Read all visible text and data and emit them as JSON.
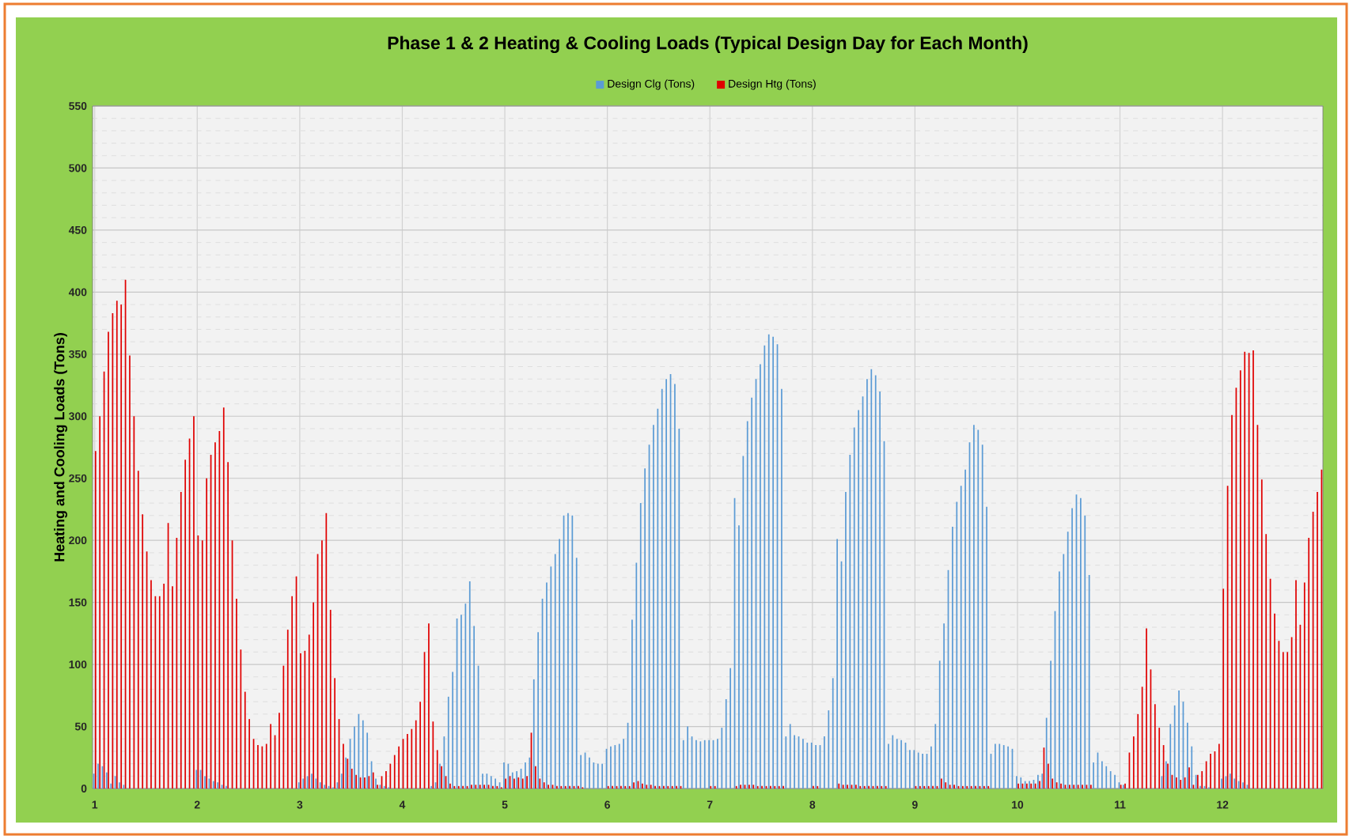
{
  "chart_data": {
    "type": "bar",
    "title": "Phase 1 & 2 Heating & Cooling Loads (Typical Design Day for Each Month)",
    "ylabel": "Heating and Cooling Loads (Tons)",
    "categories": [
      "1",
      null,
      null,
      null,
      null,
      null,
      null,
      null,
      null,
      null,
      null,
      null,
      null,
      null,
      null,
      null,
      null,
      null,
      null,
      null,
      null,
      null,
      null,
      null,
      "2",
      null,
      null,
      null,
      null,
      null,
      null,
      null,
      null,
      null,
      null,
      null,
      null,
      null,
      null,
      null,
      null,
      null,
      null,
      null,
      null,
      null,
      null,
      null,
      "3",
      null,
      null,
      null,
      null,
      null,
      null,
      null,
      null,
      null,
      null,
      null,
      null,
      null,
      null,
      null,
      null,
      null,
      null,
      null,
      null,
      null,
      null,
      null,
      "4",
      null,
      null,
      null,
      null,
      null,
      null,
      null,
      null,
      null,
      null,
      null,
      null,
      null,
      null,
      null,
      null,
      null,
      null,
      null,
      null,
      null,
      null,
      null,
      "5",
      null,
      null,
      null,
      null,
      null,
      null,
      null,
      null,
      null,
      null,
      null,
      null,
      null,
      null,
      null,
      null,
      null,
      null,
      null,
      null,
      null,
      null,
      null,
      "6",
      null,
      null,
      null,
      null,
      null,
      null,
      null,
      null,
      null,
      null,
      null,
      null,
      null,
      null,
      null,
      null,
      null,
      null,
      null,
      null,
      null,
      null,
      null,
      "7",
      null,
      null,
      null,
      null,
      null,
      null,
      null,
      null,
      null,
      null,
      null,
      null,
      null,
      null,
      null,
      null,
      null,
      null,
      null,
      null,
      null,
      null,
      null,
      "8",
      null,
      null,
      null,
      null,
      null,
      null,
      null,
      null,
      null,
      null,
      null,
      null,
      null,
      null,
      null,
      null,
      null,
      null,
      null,
      null,
      null,
      null,
      null,
      "9",
      null,
      null,
      null,
      null,
      null,
      null,
      null,
      null,
      null,
      null,
      null,
      null,
      null,
      null,
      null,
      null,
      null,
      null,
      null,
      null,
      null,
      null,
      null,
      "10",
      null,
      null,
      null,
      null,
      null,
      null,
      null,
      null,
      null,
      null,
      null,
      null,
      null,
      null,
      null,
      null,
      null,
      null,
      null,
      null,
      null,
      null,
      null,
      "11",
      null,
      null,
      null,
      null,
      null,
      null,
      null,
      null,
      null,
      null,
      null,
      null,
      null,
      null,
      null,
      null,
      null,
      null,
      null,
      null,
      null,
      null,
      null,
      "12",
      null,
      null,
      null,
      null,
      null,
      null,
      null,
      null,
      null,
      null,
      null,
      null,
      null,
      null,
      null,
      null,
      null,
      null,
      null,
      null,
      null,
      null,
      null
    ],
    "series": [
      {
        "name": "Design Clg (Tons)",
        "color": "#5b9bd5",
        "values": [
          12,
          20,
          18,
          13,
          4,
          10,
          5,
          3,
          0,
          0,
          0,
          0,
          0,
          0,
          0,
          0,
          0,
          0,
          0,
          0,
          0,
          0,
          0,
          0,
          15,
          15,
          10,
          8,
          6,
          5,
          3,
          2,
          0,
          0,
          0,
          0,
          0,
          0,
          0,
          0,
          0,
          0,
          0,
          0,
          0,
          0,
          0,
          0,
          5,
          8,
          10,
          12,
          8,
          5,
          3,
          2,
          1,
          5,
          12,
          25,
          40,
          50,
          60,
          55,
          45,
          22,
          8,
          3,
          2,
          1,
          0,
          0,
          0,
          0,
          0,
          0,
          0,
          0,
          0,
          2,
          5,
          20,
          42,
          74,
          94,
          137,
          140,
          149,
          167,
          131,
          99,
          12,
          12,
          10,
          8,
          5,
          21,
          20,
          13,
          14,
          16,
          21,
          25,
          88,
          126,
          153,
          166,
          179,
          189,
          201,
          220,
          222,
          220,
          186,
          27,
          29,
          25,
          21,
          20,
          20,
          32,
          34,
          35,
          36,
          40,
          53,
          136,
          182,
          230,
          258,
          277,
          293,
          306,
          322,
          330,
          334,
          326,
          290,
          39,
          50,
          42,
          39,
          38,
          39,
          39,
          39,
          40,
          49,
          72,
          97,
          234,
          212,
          268,
          296,
          315,
          330,
          342,
          357,
          366,
          364,
          358,
          322,
          42,
          52,
          43,
          42,
          40,
          37,
          37,
          35,
          35,
          42,
          63,
          89,
          201,
          183,
          239,
          269,
          291,
          305,
          316,
          330,
          338,
          333,
          320,
          280,
          36,
          43,
          40,
          39,
          37,
          31,
          31,
          29,
          28,
          28,
          34,
          52,
          103,
          133,
          176,
          211,
          231,
          244,
          257,
          279,
          293,
          289,
          277,
          227,
          28,
          36,
          36,
          35,
          34,
          32,
          10,
          9,
          6,
          6,
          7,
          11,
          12,
          57,
          103,
          143,
          175,
          189,
          207,
          226,
          237,
          234,
          220,
          172,
          21,
          29,
          22,
          18,
          14,
          11,
          5,
          3,
          0,
          0,
          0,
          0,
          0,
          0,
          0,
          0,
          10,
          22,
          52,
          67,
          79,
          70,
          53,
          34,
          11,
          2,
          2,
          1,
          0,
          0,
          8,
          10,
          12,
          8,
          6,
          5,
          3,
          0,
          0,
          0,
          0,
          0,
          0,
          0,
          0,
          0,
          0,
          0,
          0,
          0,
          0,
          0,
          0,
          0
        ]
      },
      {
        "name": "Design Htg (Tons)",
        "color": "#e00000",
        "values": [
          272,
          300,
          336,
          368,
          383,
          393,
          390,
          410,
          349,
          300,
          256,
          221,
          191,
          168,
          155,
          155,
          165,
          214,
          163,
          202,
          239,
          265,
          282,
          300,
          204,
          200,
          250,
          269,
          279,
          288,
          307,
          263,
          200,
          153,
          112,
          78,
          56,
          40,
          35,
          34,
          36,
          52,
          43,
          61,
          99,
          128,
          155,
          171,
          109,
          111,
          124,
          150,
          189,
          200,
          222,
          144,
          89,
          56,
          36,
          24,
          16,
          11,
          9,
          9,
          10,
          13,
          3,
          10,
          14,
          20,
          27,
          34,
          40,
          44,
          48,
          55,
          70,
          110,
          133,
          54,
          31,
          18,
          10,
          4,
          2,
          2,
          2,
          2,
          3,
          3,
          3,
          3,
          3,
          2,
          2,
          1,
          8,
          10,
          8,
          9,
          8,
          10,
          45,
          18,
          8,
          5,
          3,
          3,
          2,
          2,
          2,
          2,
          2,
          2,
          1,
          0,
          0,
          0,
          0,
          0,
          2,
          2,
          2,
          2,
          2,
          2,
          5,
          6,
          4,
          3,
          3,
          2,
          2,
          2,
          2,
          2,
          2,
          2,
          0,
          0,
          0,
          0,
          0,
          0,
          2,
          2,
          0,
          0,
          0,
          0,
          2,
          3,
          3,
          3,
          3,
          2,
          2,
          2,
          2,
          2,
          2,
          2,
          0,
          0,
          0,
          0,
          0,
          0,
          2,
          2,
          0,
          0,
          0,
          0,
          4,
          3,
          3,
          3,
          3,
          2,
          2,
          2,
          2,
          2,
          2,
          2,
          0,
          0,
          0,
          0,
          0,
          0,
          2,
          2,
          2,
          2,
          2,
          2,
          8,
          5,
          3,
          3,
          2,
          2,
          2,
          2,
          2,
          2,
          2,
          2,
          0,
          0,
          0,
          0,
          0,
          0,
          4,
          4,
          4,
          4,
          4,
          6,
          33,
          20,
          8,
          5,
          4,
          3,
          3,
          3,
          3,
          3,
          3,
          3,
          0,
          0,
          0,
          0,
          0,
          0,
          3,
          4,
          29,
          42,
          60,
          82,
          129,
          96,
          68,
          49,
          35,
          20,
          11,
          9,
          7,
          9,
          17,
          3,
          11,
          14,
          22,
          28,
          30,
          36,
          161,
          244,
          301,
          323,
          337,
          352,
          351,
          353,
          293,
          249,
          205,
          169,
          141,
          119,
          110,
          110,
          122,
          168,
          132,
          166,
          202,
          223,
          239,
          257
        ]
      }
    ],
    "ylim": [
      0,
      550
    ],
    "yticks": [
      0,
      50,
      100,
      150,
      200,
      250,
      300,
      350,
      400,
      450,
      500,
      550
    ],
    "grid": true,
    "legend": "top"
  }
}
